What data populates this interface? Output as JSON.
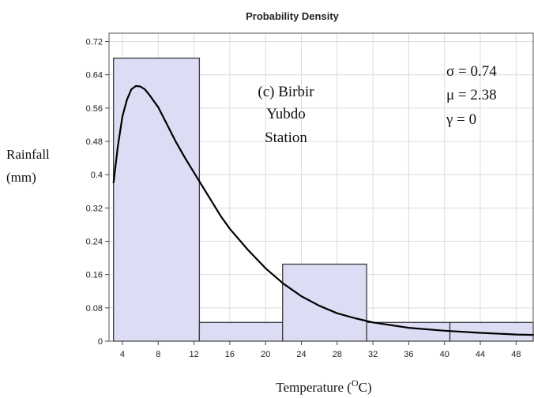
{
  "chart_data": {
    "type": "bar",
    "title": "Probability Density",
    "ylabel_line1": "Rainfall",
    "ylabel_line2": "(mm)",
    "xlabel_main": "Temperature (",
    "xlabel_sup": "O",
    "xlabel_end": "C)",
    "annotation": {
      "line1": "(c) Birbir",
      "line2": "Yubdo",
      "line3": "Station"
    },
    "params": {
      "sigma": "σ = 0.74",
      "mu": "μ = 2.38",
      "gamma": "γ = 0"
    },
    "xlim": [
      2.5,
      50
    ],
    "ylim": [
      0,
      0.74
    ],
    "x_ticks": [
      4,
      8,
      12,
      16,
      20,
      24,
      28,
      32,
      36,
      40,
      44,
      48
    ],
    "y_ticks": [
      0,
      0.08,
      0.16,
      0.24,
      0.32,
      0.4,
      0.48,
      0.56,
      0.64,
      0.72
    ],
    "y_tick_labels": [
      "0",
      "0.08",
      "0.16",
      "0.24",
      "0.32",
      "0.4",
      "0.48",
      "0.56",
      "0.64",
      "0.72"
    ],
    "grid": true,
    "bins": [
      {
        "x0": 3.0,
        "x1": 12.6,
        "value": 0.68
      },
      {
        "x0": 12.6,
        "x1": 21.9,
        "value": 0.045
      },
      {
        "x0": 21.9,
        "x1": 31.3,
        "value": 0.185
      },
      {
        "x0": 31.3,
        "x1": 40.6,
        "value": 0.045
      },
      {
        "x0": 40.6,
        "x1": 50.0,
        "value": 0.045
      }
    ],
    "curve": {
      "x": [
        3.0,
        3.5,
        4.0,
        4.5,
        5.0,
        5.5,
        6.0,
        6.5,
        7.0,
        8.0,
        9.0,
        10.0,
        11.0,
        12.0,
        13.0,
        14.0,
        15.0,
        16.0,
        18.0,
        20.0,
        22.0,
        24.0,
        26.0,
        28.0,
        30.0,
        32.0,
        36.0,
        40.0,
        44.0,
        48.0,
        50.0
      ],
      "y": [
        0.38,
        0.47,
        0.54,
        0.58,
        0.605,
        0.613,
        0.612,
        0.605,
        0.592,
        0.562,
        0.52,
        0.478,
        0.44,
        0.405,
        0.37,
        0.335,
        0.3,
        0.27,
        0.22,
        0.175,
        0.138,
        0.108,
        0.085,
        0.067,
        0.055,
        0.045,
        0.032,
        0.025,
        0.02,
        0.016,
        0.015
      ]
    },
    "colors": {
      "bar_fill": "#dcdcf5",
      "bar_stroke": "#3a3a3a",
      "curve": "#000000",
      "grid": "#dcdcdc"
    }
  }
}
